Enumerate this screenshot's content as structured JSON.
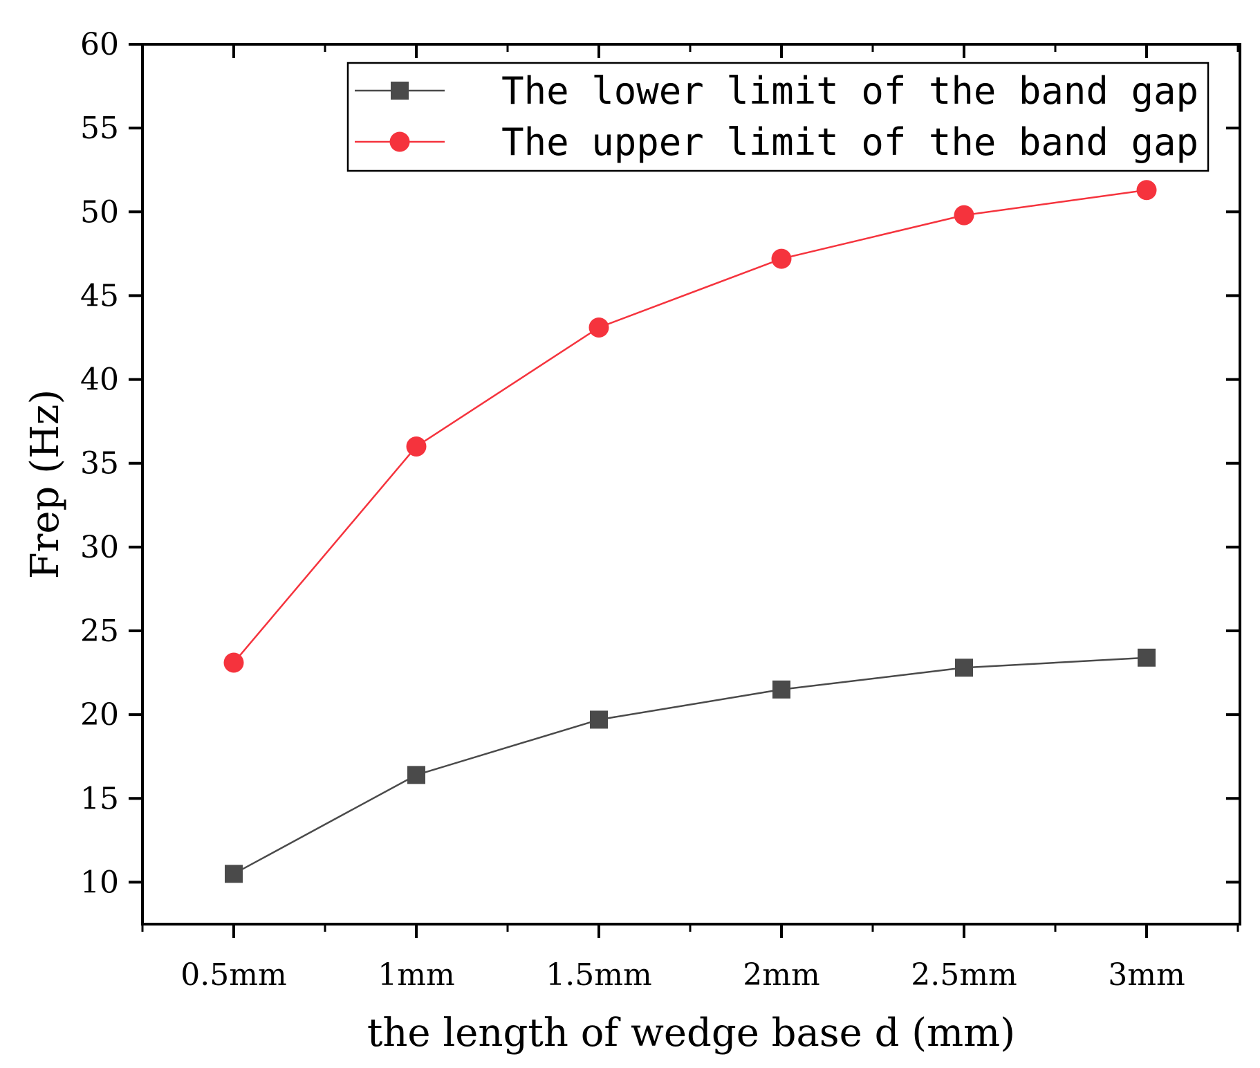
{
  "chart_data": {
    "type": "line",
    "title": "",
    "xlabel": "the length of wedge base d (mm)",
    "ylabel": "Frep (Hz)",
    "categories": [
      "0.5mm",
      "1mm",
      "1.5mm",
      "2mm",
      "2.5mm",
      "3mm"
    ],
    "ylim": [
      7.5,
      60
    ],
    "yticks": [
      10,
      15,
      20,
      25,
      30,
      35,
      40,
      45,
      50,
      55,
      60
    ],
    "legend_position": "top-right",
    "series": [
      {
        "name": "The lower limit of the band gap",
        "marker": "square",
        "color": "#4a4a4a",
        "values": [
          10.5,
          16.4,
          19.7,
          21.5,
          22.8,
          23.4
        ]
      },
      {
        "name": "The upper limit of the band gap",
        "marker": "circle",
        "color": "#f5333d",
        "values": [
          23.1,
          36.0,
          43.1,
          47.2,
          49.8,
          51.3
        ]
      }
    ]
  }
}
